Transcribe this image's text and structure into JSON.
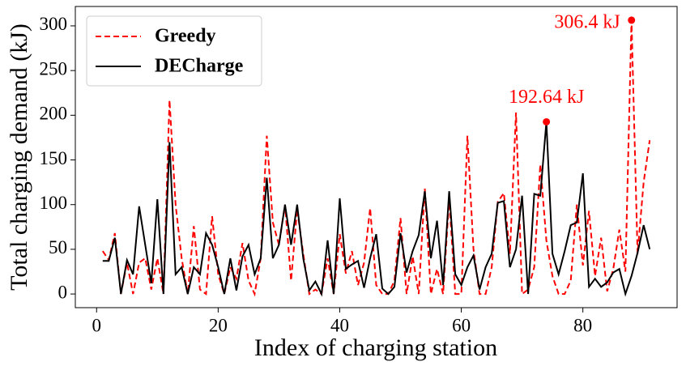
{
  "chart_data": {
    "type": "line",
    "xlabel": "Index of charging station",
    "ylabel": "Total charging demand (kJ)",
    "x": [
      1,
      2,
      3,
      4,
      5,
      6,
      7,
      8,
      9,
      10,
      11,
      12,
      13,
      14,
      15,
      16,
      17,
      18,
      19,
      20,
      21,
      22,
      23,
      24,
      25,
      26,
      27,
      28,
      29,
      30,
      31,
      32,
      33,
      34,
      35,
      36,
      37,
      38,
      39,
      40,
      41,
      42,
      43,
      44,
      45,
      46,
      47,
      48,
      49,
      50,
      51,
      52,
      53,
      54,
      55,
      56,
      57,
      58,
      59,
      60,
      61,
      62,
      63,
      64,
      65,
      66,
      67,
      68,
      69,
      70,
      71,
      72,
      73,
      74,
      75,
      76,
      77,
      78,
      79,
      80,
      81,
      82,
      83,
      84,
      85,
      86,
      87,
      88,
      89,
      90,
      91
    ],
    "series": [
      {
        "name": "Greedy",
        "color": "#ff0000",
        "dash": true,
        "values": [
          48,
          38,
          68,
          0,
          35,
          0,
          35,
          40,
          5,
          40,
          0,
          217,
          100,
          40,
          0,
          76,
          5,
          0,
          87,
          22,
          0,
          30,
          17,
          57,
          15,
          0,
          40,
          177,
          80,
          55,
          100,
          15,
          95,
          45,
          0,
          5,
          0,
          40,
          0,
          67,
          23,
          48,
          10,
          35,
          96,
          10,
          0,
          0,
          15,
          85,
          0,
          42,
          0,
          118,
          0,
          28,
          0,
          107,
          0,
          0,
          177,
          50,
          0,
          0,
          30,
          103,
          113,
          45,
          203,
          0,
          5,
          30,
          145,
          60,
          20,
          0,
          0,
          15,
          100,
          32,
          93,
          20,
          63,
          3,
          28,
          72,
          25,
          306.4,
          45,
          125,
          172
        ]
      },
      {
        "name": "DECharge",
        "color": "#000000",
        "dash": false,
        "values": [
          37,
          37,
          63,
          0,
          38,
          22,
          98,
          55,
          12,
          106,
          0,
          170,
          22,
          30,
          0,
          30,
          22,
          68,
          55,
          30,
          0,
          40,
          4,
          42,
          55,
          22,
          40,
          130,
          40,
          55,
          100,
          55,
          100,
          40,
          4,
          14,
          0,
          60,
          0,
          107,
          28,
          33,
          37,
          7,
          40,
          67,
          6,
          0,
          8,
          68,
          24,
          48,
          66,
          115,
          40,
          82,
          10,
          115,
          22,
          10,
          30,
          43,
          5,
          30,
          45,
          102,
          104,
          30,
          50,
          110,
          0,
          112,
          110,
          192.64,
          45,
          22,
          48,
          77,
          80,
          135,
          8,
          17,
          8,
          13,
          24,
          28,
          0,
          20,
          46,
          77,
          50
        ]
      }
    ],
    "annotations": [
      {
        "text": "192.64 kJ",
        "x": 74,
        "y": 192.64,
        "color": "#ff0000"
      },
      {
        "text": "306.4 kJ",
        "x": 88,
        "y": 306.4,
        "color": "#ff0000"
      }
    ],
    "xlim": [
      -3.5,
      95.5
    ],
    "xticks": [
      0,
      20,
      40,
      60,
      80
    ],
    "ylim": [
      -15.3,
      321.7
    ],
    "yticks": [
      0,
      50,
      100,
      150,
      200,
      250,
      300
    ],
    "grid": false,
    "legend": "upper left"
  }
}
